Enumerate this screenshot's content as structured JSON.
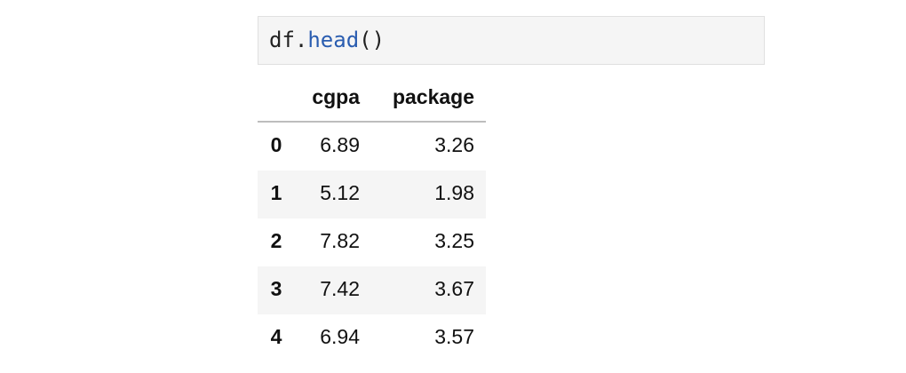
{
  "code": {
    "object": "df",
    "dot": ".",
    "method": "head",
    "call": "()"
  },
  "table": {
    "columns": [
      "cgpa",
      "package"
    ],
    "index": [
      "0",
      "1",
      "2",
      "3",
      "4"
    ],
    "rows": [
      [
        "6.89",
        "3.26"
      ],
      [
        "5.12",
        "1.98"
      ],
      [
        "7.82",
        "3.25"
      ],
      [
        "7.42",
        "3.67"
      ],
      [
        "6.94",
        "3.57"
      ]
    ]
  }
}
